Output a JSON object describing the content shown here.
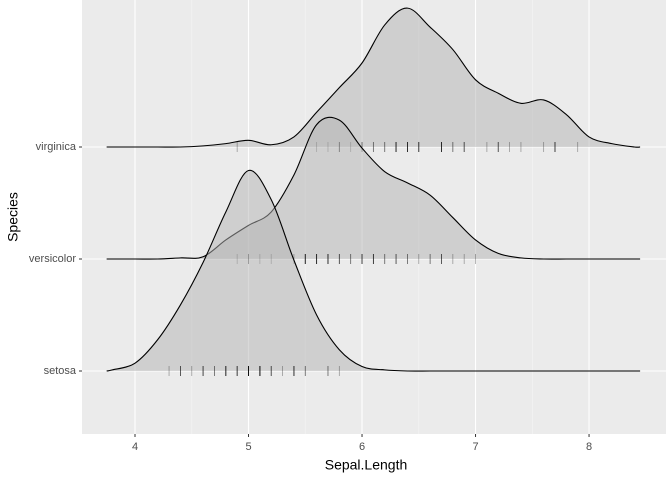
{
  "chart_data": {
    "type": "ridgeline",
    "x_label": "Sepal.Length",
    "y_label": "Species",
    "categories": [
      "setosa",
      "versicolor",
      "virginica"
    ],
    "x": [
      3.75,
      3.8,
      4.0,
      4.2,
      4.4,
      4.6,
      4.8,
      5.0,
      5.2,
      5.4,
      5.6,
      5.8,
      6.0,
      6.2,
      6.4,
      6.6,
      6.8,
      7.0,
      7.2,
      7.4,
      7.6,
      7.8,
      8.0,
      8.2,
      8.4,
      8.45
    ],
    "series": [
      {
        "name": "setosa",
        "values": [
          0,
          0.01,
          0.07,
          0.28,
          0.59,
          0.97,
          1.42,
          1.79,
          1.53,
          0.99,
          0.5,
          0.19,
          0.04,
          0.01,
          0,
          0,
          0,
          0,
          0,
          0,
          0,
          0,
          0,
          0,
          0,
          0
        ],
        "points": [
          5.1,
          4.9,
          4.7,
          4.6,
          5.0,
          5.4,
          4.6,
          5.0,
          4.4,
          4.9,
          5.4,
          4.8,
          4.8,
          4.3,
          5.8,
          5.7,
          5.4,
          5.1,
          5.7,
          5.1,
          5.4,
          5.1,
          4.6,
          5.1,
          4.8,
          5.0,
          5.0,
          5.2,
          5.2,
          4.7,
          4.8,
          5.4,
          5.2,
          5.5,
          4.9,
          5.0,
          5.5,
          4.9,
          4.4,
          5.1,
          5.0,
          4.5,
          4.4,
          5.0,
          5.1,
          4.8,
          5.1,
          4.6,
          5.3,
          5.0
        ]
      },
      {
        "name": "versicolor",
        "values": [
          0,
          0,
          0,
          0,
          0.01,
          0.02,
          0.17,
          0.3,
          0.42,
          0.75,
          1.2,
          1.24,
          0.99,
          0.78,
          0.68,
          0.57,
          0.37,
          0.17,
          0.05,
          0.01,
          0,
          0,
          0,
          0,
          0,
          0
        ],
        "points": [
          7.0,
          6.4,
          6.9,
          5.5,
          6.5,
          5.7,
          6.3,
          4.9,
          6.6,
          5.2,
          5.0,
          5.9,
          6.0,
          6.1,
          5.6,
          6.7,
          5.6,
          5.8,
          6.2,
          5.6,
          5.9,
          6.1,
          6.3,
          6.1,
          6.4,
          6.6,
          6.8,
          6.7,
          6.0,
          5.7,
          5.5,
          5.5,
          5.8,
          6.0,
          5.4,
          6.0,
          6.7,
          6.3,
          5.6,
          5.5,
          5.5,
          6.1,
          5.8,
          5.0,
          5.6,
          5.7,
          5.7,
          6.2,
          5.1,
          5.7
        ]
      },
      {
        "name": "virginica",
        "values": [
          0,
          0,
          0,
          0,
          0,
          0.01,
          0.03,
          0.06,
          0.02,
          0.09,
          0.31,
          0.53,
          0.75,
          1.09,
          1.24,
          1.07,
          0.87,
          0.6,
          0.48,
          0.39,
          0.42,
          0.29,
          0.09,
          0.03,
          0,
          0
        ],
        "points": [
          6.3,
          5.8,
          7.1,
          6.3,
          6.5,
          7.6,
          4.9,
          7.3,
          6.7,
          7.2,
          6.5,
          6.4,
          6.8,
          5.7,
          5.8,
          6.4,
          6.5,
          7.7,
          7.7,
          6.0,
          6.9,
          5.6,
          7.7,
          6.3,
          6.7,
          7.2,
          6.2,
          6.1,
          6.4,
          7.2,
          7.4,
          7.9,
          6.4,
          6.3,
          6.1,
          7.7,
          6.3,
          6.4,
          6.0,
          6.9,
          6.7,
          6.9,
          5.8,
          6.8,
          6.7,
          6.7,
          6.3,
          6.5,
          6.2,
          5.9
        ]
      }
    ],
    "fill": "#b3b3b3",
    "line_color": "#000000",
    "xlim": [
      3.533,
      8.678
    ],
    "xticks": [
      4,
      5,
      6,
      7,
      8
    ],
    "grid": true
  }
}
